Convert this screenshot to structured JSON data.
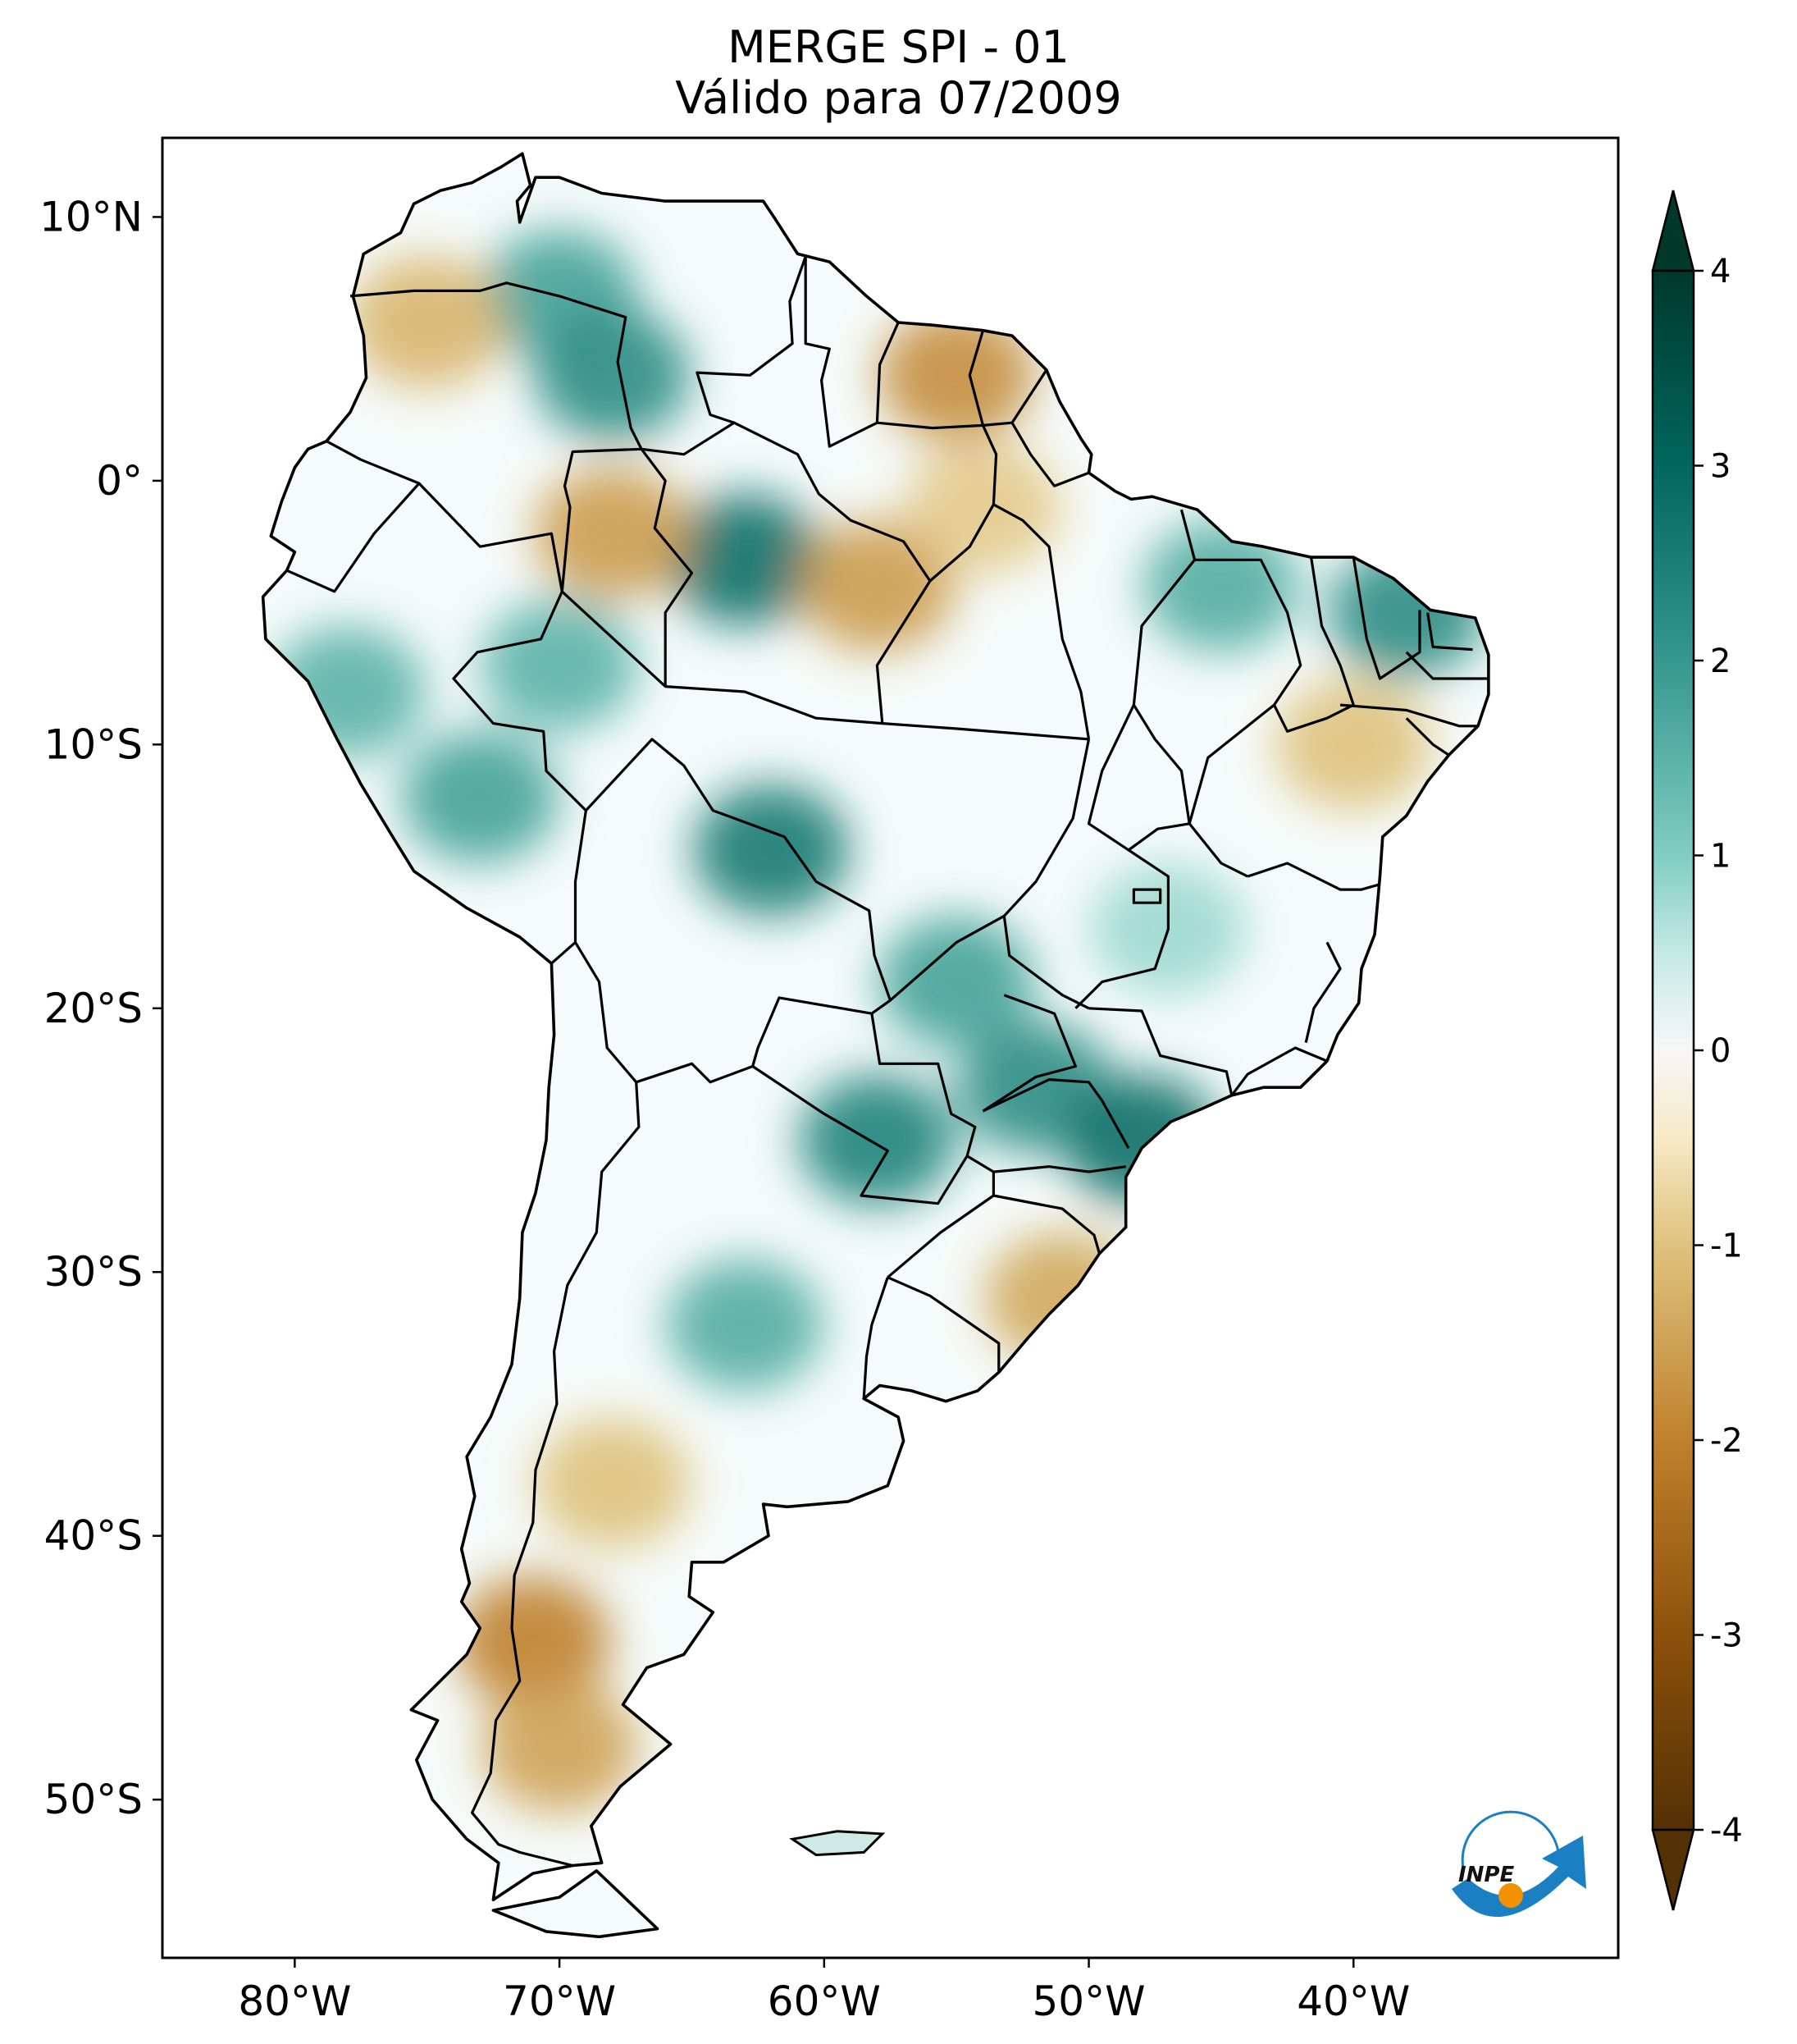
{
  "title": {
    "line1": "MERGE   SPI - 01",
    "line2": "Válido para 07/2009"
  },
  "map": {
    "region": "South America",
    "lon_range": [
      -85,
      -30
    ],
    "lat_range": [
      -56,
      13
    ],
    "lon_ticks": [
      "80°W",
      "70°W",
      "60°W",
      "50°W",
      "40°W"
    ],
    "lat_ticks": [
      "10°N",
      "0°",
      "10°S",
      "20°S",
      "30°S",
      "40°S",
      "50°S"
    ]
  },
  "colorbar": {
    "ticks": [
      "4",
      "3",
      "2",
      "1",
      "0",
      "-1",
      "-2",
      "-3",
      "-4"
    ],
    "range": [
      -4,
      4
    ],
    "extend": "both",
    "colors": {
      "max": "#00392a",
      "high": "#2a9c8c",
      "mid_high": "#bfe6df",
      "zero": "#ffffff",
      "mid_low": "#efddb0",
      "low": "#b97a2a",
      "min": "#4a2905"
    }
  },
  "logo": {
    "text": "INPE",
    "colors": {
      "arrow": "#1b7fc4",
      "dot": "#f39200"
    }
  },
  "anomalies": [
    {
      "lon": -70,
      "lat": 7,
      "value": 1.8
    },
    {
      "lon": -75,
      "lat": 6,
      "value": -1.2
    },
    {
      "lon": -68,
      "lat": 4,
      "value": 2.2
    },
    {
      "lon": -63,
      "lat": -3,
      "value": 2.8
    },
    {
      "lon": -68,
      "lat": -2,
      "value": -1.6
    },
    {
      "lon": -58,
      "lat": -4,
      "value": -1.6
    },
    {
      "lon": -55,
      "lat": 4,
      "value": -1.8
    },
    {
      "lon": -54,
      "lat": -1,
      "value": -0.9
    },
    {
      "lon": -70,
      "lat": -7,
      "value": 1.5
    },
    {
      "lon": -73,
      "lat": -12,
      "value": 1.8
    },
    {
      "lon": -62,
      "lat": -14,
      "value": 2.6
    },
    {
      "lon": -55,
      "lat": -19,
      "value": 1.8
    },
    {
      "lon": -52,
      "lat": -23,
      "value": 2.2
    },
    {
      "lon": -48,
      "lat": -25,
      "value": 2.8
    },
    {
      "lon": -58,
      "lat": -25,
      "value": 2.4
    },
    {
      "lon": -63,
      "lat": -32,
      "value": 1.6
    },
    {
      "lon": -51,
      "lat": -31,
      "value": -1.4
    },
    {
      "lon": -38,
      "lat": -5,
      "value": 2.2
    },
    {
      "lon": -45,
      "lat": -4,
      "value": 1.6
    },
    {
      "lon": -71,
      "lat": -44,
      "value": -2.0
    },
    {
      "lon": -70,
      "lat": -48,
      "value": -1.5
    },
    {
      "lon": -68,
      "lat": -38,
      "value": -1.0
    },
    {
      "lon": -78,
      "lat": -8,
      "value": 1.5
    },
    {
      "lon": -40,
      "lat": -10,
      "value": -1.0
    },
    {
      "lon": -47,
      "lat": -17,
      "value": 0.8
    }
  ]
}
